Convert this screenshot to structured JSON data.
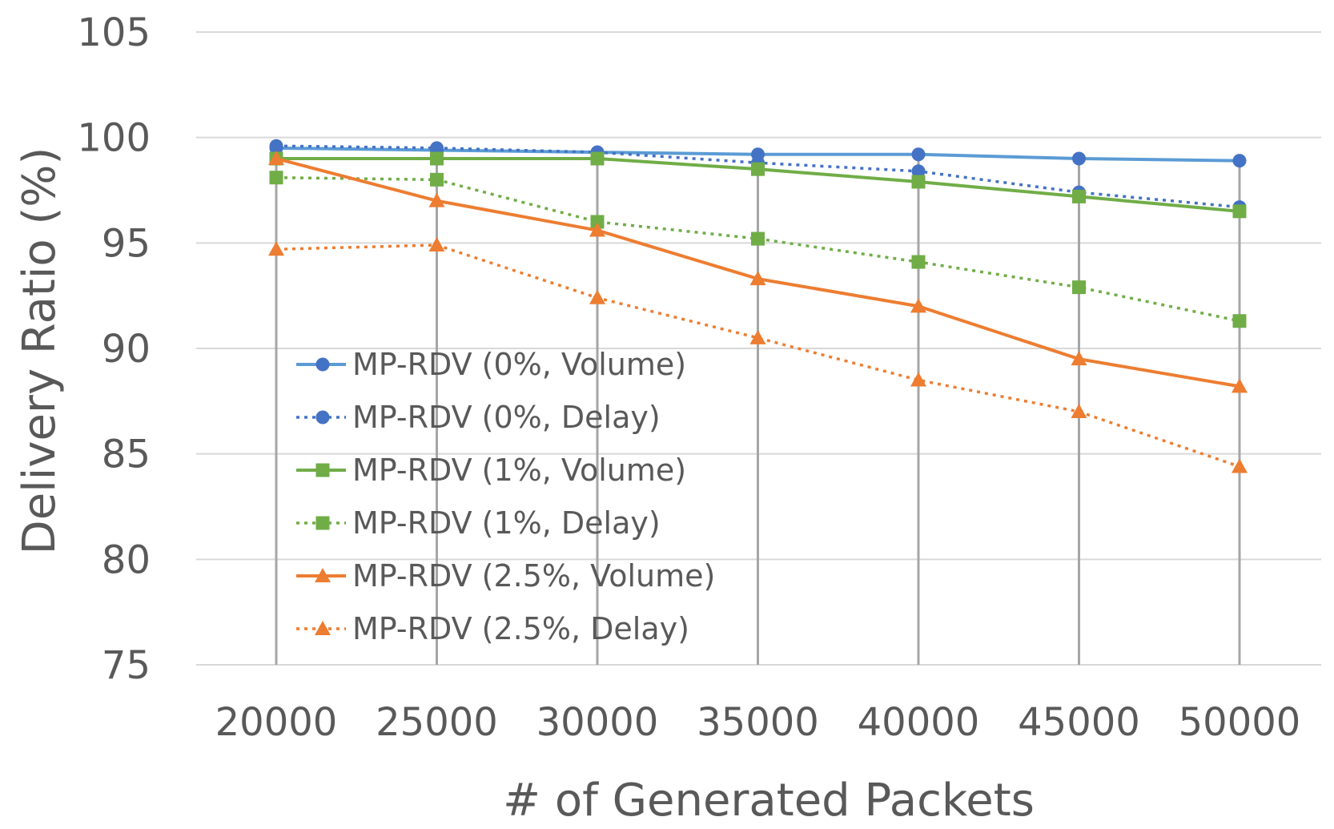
{
  "chart_data": {
    "type": "line",
    "title": "",
    "xlabel": "# of Generated Packets",
    "ylabel": "Delivery Ratio (%)",
    "ylim": [
      75,
      105
    ],
    "yticks": [
      75,
      80,
      85,
      90,
      95,
      100,
      105
    ],
    "categories": [
      "20000",
      "25000",
      "30000",
      "35000",
      "40000",
      "45000",
      "50000"
    ],
    "grid": {
      "horizontal": true,
      "vertical": true
    },
    "legend_position": "center-left",
    "series": [
      {
        "name": "MP-RDV (0%, Volume)",
        "color": "#5B9BD5",
        "marker_color": "#4472C4",
        "line": "solid",
        "marker": "circle",
        "values": [
          99.5,
          99.4,
          99.3,
          99.2,
          99.2,
          99.0,
          98.9
        ]
      },
      {
        "name": "MP-RDV (0%, Delay)",
        "color": "#4472C4",
        "marker_color": "#4472C4",
        "line": "dotted",
        "marker": "circle",
        "values": [
          99.6,
          99.5,
          99.3,
          98.8,
          98.4,
          97.4,
          96.7
        ]
      },
      {
        "name": "MP-RDV (1%, Volume)",
        "color": "#70AD47",
        "marker_color": "#70AD47",
        "line": "solid",
        "marker": "square",
        "values": [
          99.0,
          99.0,
          99.0,
          98.5,
          97.9,
          97.2,
          96.5
        ]
      },
      {
        "name": "MP-RDV (1%, Delay)",
        "color": "#70AD47",
        "marker_color": "#70AD47",
        "line": "dotted",
        "marker": "square",
        "values": [
          98.1,
          98.0,
          96.0,
          95.2,
          94.1,
          92.9,
          91.3
        ]
      },
      {
        "name": "MP-RDV (2.5%, Volume)",
        "color": "#ED7D31",
        "marker_color": "#ED7D31",
        "line": "solid",
        "marker": "triangle",
        "values": [
          99.0,
          97.0,
          95.6,
          93.3,
          92.0,
          89.5,
          88.2
        ]
      },
      {
        "name": "MP-RDV (2.5%, Delay)",
        "color": "#ED7D31",
        "marker_color": "#ED7D31",
        "line": "dotted",
        "marker": "triangle",
        "values": [
          94.7,
          94.9,
          92.4,
          90.5,
          88.5,
          87.0,
          84.4
        ]
      }
    ]
  }
}
